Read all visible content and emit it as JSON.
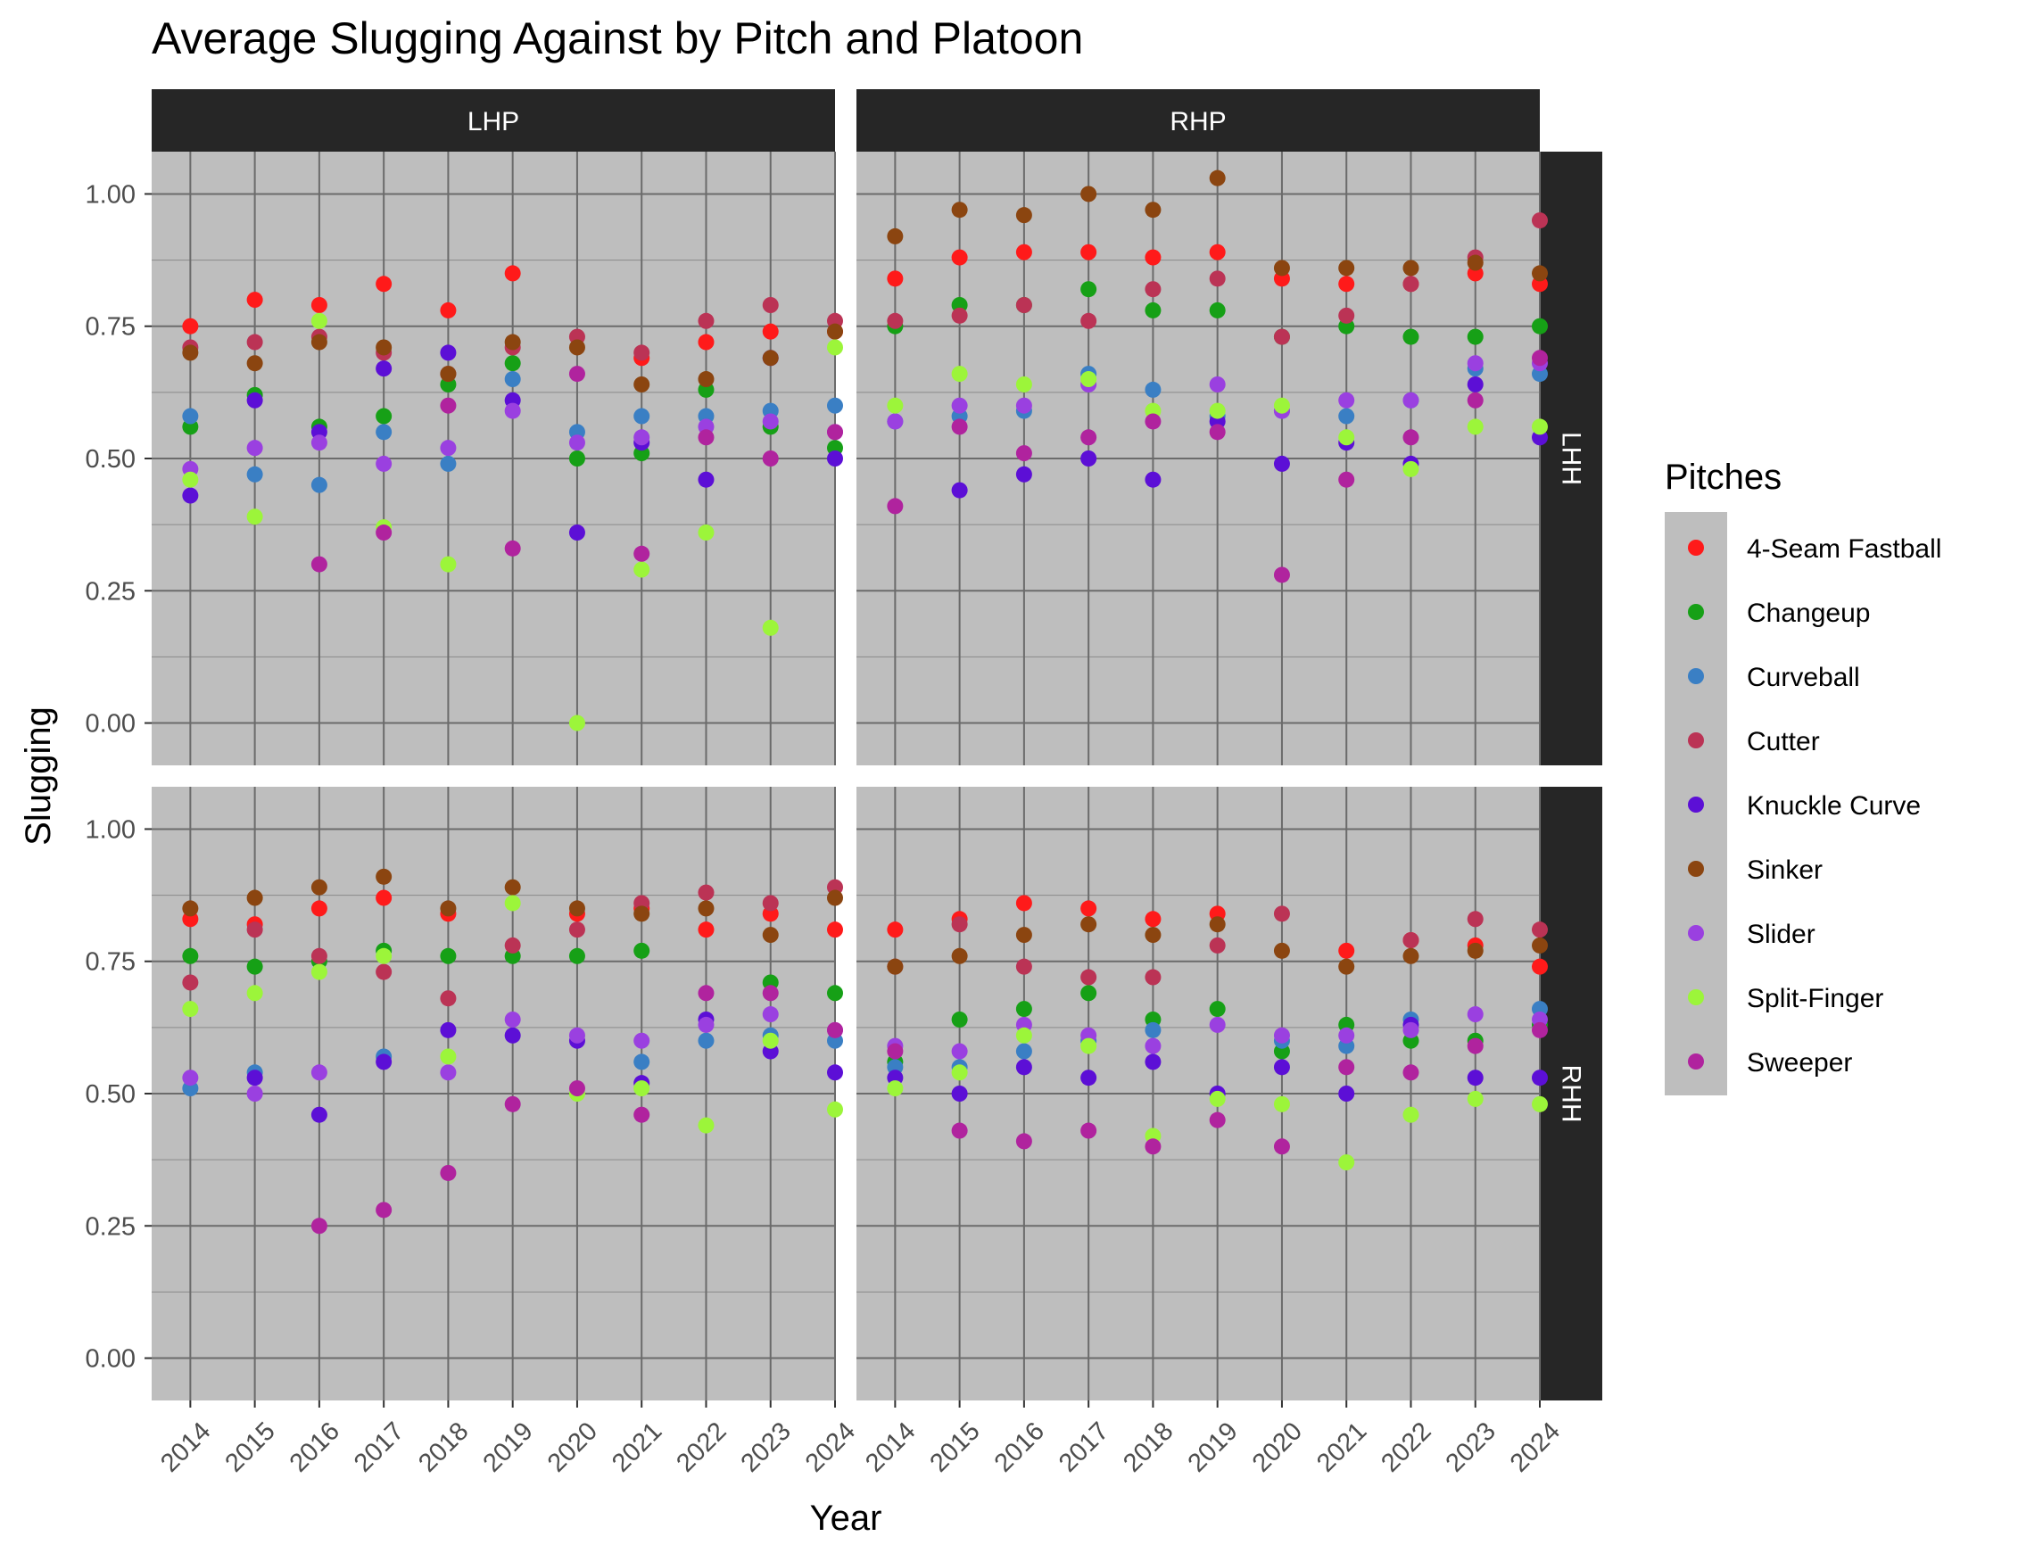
{
  "chart_data": {
    "type": "scatter",
    "title": "Average Slugging Against by Pitch and Platoon",
    "xlabel": "Year",
    "ylabel": "Slugging",
    "x": [
      "2014",
      "2015",
      "2016",
      "2017",
      "2018",
      "2019",
      "2020",
      "2021",
      "2022",
      "2023",
      "2024"
    ],
    "ylim": [
      -0.08,
      1.08
    ],
    "y_ticks": [
      "0.00",
      "0.25",
      "0.50",
      "0.75",
      "1.00"
    ],
    "grid": true,
    "facet_columns": [
      "LHP",
      "RHP"
    ],
    "facet_rows": [
      "LHH",
      "RHH"
    ],
    "legend": {
      "title": "Pitches",
      "position": "right",
      "entries": [
        {
          "name": "4-Seam Fastball",
          "color": "#ff1a1a"
        },
        {
          "name": "Changeup",
          "color": "#16a016"
        },
        {
          "name": "Curveball",
          "color": "#3a7fc4"
        },
        {
          "name": "Cutter",
          "color": "#bb3355"
        },
        {
          "name": "Knuckle Curve",
          "color": "#5c0fd6"
        },
        {
          "name": "Sinker",
          "color": "#8b4510"
        },
        {
          "name": "Slider",
          "color": "#9a40e0"
        },
        {
          "name": "Split-Finger",
          "color": "#9cf53a"
        },
        {
          "name": "Sweeper",
          "color": "#b0239e"
        }
      ]
    },
    "panels": [
      {
        "col": "LHP",
        "row": "LHH",
        "series": [
          {
            "name": "4-Seam Fastball",
            "values": [
              0.75,
              0.8,
              0.79,
              0.83,
              0.78,
              0.85,
              null,
              0.69,
              0.72,
              0.74,
              0.74
            ]
          },
          {
            "name": "Changeup",
            "values": [
              0.56,
              0.62,
              0.56,
              0.58,
              0.64,
              0.68,
              0.5,
              0.51,
              0.63,
              0.56,
              0.52
            ]
          },
          {
            "name": "Curveball",
            "values": [
              0.58,
              0.47,
              0.45,
              0.55,
              0.49,
              0.65,
              0.55,
              0.58,
              0.58,
              0.59,
              0.6
            ]
          },
          {
            "name": "Cutter",
            "values": [
              0.71,
              0.72,
              0.73,
              0.7,
              0.66,
              0.71,
              0.73,
              0.7,
              0.76,
              0.79,
              0.76
            ]
          },
          {
            "name": "Knuckle Curve",
            "values": [
              0.43,
              0.61,
              0.55,
              0.67,
              0.7,
              0.61,
              0.36,
              0.53,
              0.46,
              0.69,
              0.5
            ]
          },
          {
            "name": "Sinker",
            "values": [
              0.7,
              0.68,
              0.72,
              0.71,
              0.66,
              0.72,
              0.71,
              0.64,
              0.65,
              0.69,
              0.74
            ]
          },
          {
            "name": "Slider",
            "values": [
              0.48,
              0.52,
              0.53,
              0.49,
              0.52,
              0.59,
              0.53,
              0.54,
              0.56,
              0.57,
              0.55
            ]
          },
          {
            "name": "Split-Finger",
            "values": [
              0.46,
              0.39,
              0.76,
              0.37,
              0.3,
              null,
              0.0,
              0.29,
              0.36,
              0.18,
              0.71
            ]
          },
          {
            "name": "Sweeper",
            "values": [
              null,
              null,
              0.3,
              0.36,
              0.6,
              0.33,
              0.66,
              0.32,
              0.54,
              0.5,
              0.55
            ]
          }
        ]
      },
      {
        "col": "RHP",
        "row": "LHH",
        "series": [
          {
            "name": "4-Seam Fastball",
            "values": [
              0.84,
              0.88,
              0.89,
              0.89,
              0.88,
              0.89,
              0.84,
              0.83,
              0.83,
              0.85,
              0.83
            ]
          },
          {
            "name": "Changeup",
            "values": [
              0.75,
              0.79,
              0.79,
              0.82,
              0.78,
              0.78,
              0.73,
              0.75,
              0.73,
              0.73,
              0.75
            ]
          },
          {
            "name": "Curveball",
            "values": [
              0.57,
              0.58,
              0.59,
              0.66,
              0.63,
              0.58,
              0.59,
              0.58,
              0.61,
              0.67,
              0.66
            ]
          },
          {
            "name": "Cutter",
            "values": [
              0.76,
              0.77,
              0.79,
              0.76,
              0.82,
              0.84,
              0.73,
              0.77,
              0.83,
              0.88,
              0.95
            ]
          },
          {
            "name": "Knuckle Curve",
            "values": [
              null,
              0.44,
              0.47,
              0.5,
              0.46,
              0.57,
              0.49,
              0.53,
              0.49,
              0.64,
              0.54
            ]
          },
          {
            "name": "Sinker",
            "values": [
              0.92,
              0.97,
              0.96,
              1.0,
              0.97,
              1.03,
              0.86,
              0.86,
              0.86,
              0.87,
              0.85
            ]
          },
          {
            "name": "Slider",
            "values": [
              0.57,
              0.6,
              0.6,
              0.64,
              null,
              0.64,
              0.59,
              0.61,
              0.61,
              0.68,
              0.68
            ]
          },
          {
            "name": "Split-Finger",
            "values": [
              0.6,
              0.66,
              0.64,
              0.65,
              0.59,
              0.59,
              0.6,
              0.54,
              0.48,
              0.56,
              0.56
            ]
          },
          {
            "name": "Sweeper",
            "values": [
              0.41,
              0.56,
              0.51,
              0.54,
              0.57,
              0.55,
              0.28,
              0.46,
              0.54,
              0.61,
              0.69
            ]
          }
        ]
      },
      {
        "col": "LHP",
        "row": "RHH",
        "series": [
          {
            "name": "4-Seam Fastball",
            "values": [
              0.83,
              0.82,
              0.85,
              0.87,
              0.84,
              null,
              0.84,
              0.85,
              0.81,
              0.84,
              0.81
            ]
          },
          {
            "name": "Changeup",
            "values": [
              0.76,
              0.74,
              0.75,
              0.77,
              0.76,
              0.76,
              0.76,
              0.77,
              null,
              0.71,
              0.69
            ]
          },
          {
            "name": "Curveball",
            "values": [
              0.51,
              0.54,
              null,
              0.57,
              null,
              null,
              null,
              0.56,
              0.6,
              0.61,
              0.6
            ]
          },
          {
            "name": "Cutter",
            "values": [
              0.71,
              0.81,
              0.76,
              0.73,
              0.68,
              0.78,
              0.81,
              0.86,
              0.88,
              0.86,
              0.89
            ]
          },
          {
            "name": "Knuckle Curve",
            "values": [
              null,
              0.53,
              0.46,
              0.56,
              0.62,
              0.61,
              0.6,
              0.52,
              0.64,
              0.58,
              0.54
            ]
          },
          {
            "name": "Sinker",
            "values": [
              0.85,
              0.87,
              0.89,
              0.91,
              0.85,
              0.89,
              0.85,
              0.84,
              0.85,
              0.8,
              0.87
            ]
          },
          {
            "name": "Slider",
            "values": [
              0.53,
              0.5,
              0.54,
              null,
              0.54,
              0.64,
              0.61,
              0.6,
              0.63,
              0.65,
              0.62
            ]
          },
          {
            "name": "Split-Finger",
            "values": [
              0.66,
              0.69,
              0.73,
              0.76,
              0.57,
              0.86,
              0.5,
              0.51,
              0.44,
              0.6,
              0.47
            ]
          },
          {
            "name": "Sweeper",
            "values": [
              null,
              null,
              0.25,
              0.28,
              0.35,
              0.48,
              0.51,
              0.46,
              0.69,
              0.69,
              0.62
            ]
          }
        ]
      },
      {
        "col": "RHP",
        "row": "RHH",
        "series": [
          {
            "name": "4-Seam Fastball",
            "values": [
              0.81,
              0.83,
              0.86,
              0.85,
              0.83,
              0.84,
              null,
              0.77,
              0.79,
              0.78,
              0.74
            ]
          },
          {
            "name": "Changeup",
            "values": [
              0.56,
              0.64,
              0.66,
              0.69,
              0.64,
              0.66,
              0.58,
              0.63,
              0.6,
              0.6,
              0.63
            ]
          },
          {
            "name": "Curveball",
            "values": [
              0.55,
              0.55,
              0.58,
              0.6,
              0.62,
              null,
              0.6,
              0.59,
              0.64,
              null,
              0.66
            ]
          },
          {
            "name": "Cutter",
            "values": [
              0.74,
              0.82,
              0.74,
              0.72,
              0.72,
              0.78,
              0.84,
              null,
              0.79,
              0.83,
              0.81
            ]
          },
          {
            "name": "Knuckle Curve",
            "values": [
              0.53,
              0.5,
              0.55,
              0.53,
              0.56,
              0.5,
              0.55,
              0.5,
              0.63,
              0.53,
              0.53
            ]
          },
          {
            "name": "Sinker",
            "values": [
              0.74,
              0.76,
              0.8,
              0.82,
              0.8,
              0.82,
              0.77,
              0.74,
              0.76,
              0.77,
              0.78
            ]
          },
          {
            "name": "Slider",
            "values": [
              0.59,
              0.58,
              0.63,
              0.61,
              0.59,
              0.63,
              0.61,
              0.61,
              0.62,
              0.65,
              0.64
            ]
          },
          {
            "name": "Split-Finger",
            "values": [
              0.51,
              0.54,
              0.61,
              0.59,
              0.42,
              0.49,
              0.48,
              0.37,
              0.46,
              0.49,
              0.48
            ]
          },
          {
            "name": "Sweeper",
            "values": [
              0.58,
              0.43,
              0.41,
              0.43,
              0.4,
              0.45,
              0.4,
              0.55,
              0.54,
              0.59,
              0.62
            ]
          }
        ]
      }
    ]
  }
}
